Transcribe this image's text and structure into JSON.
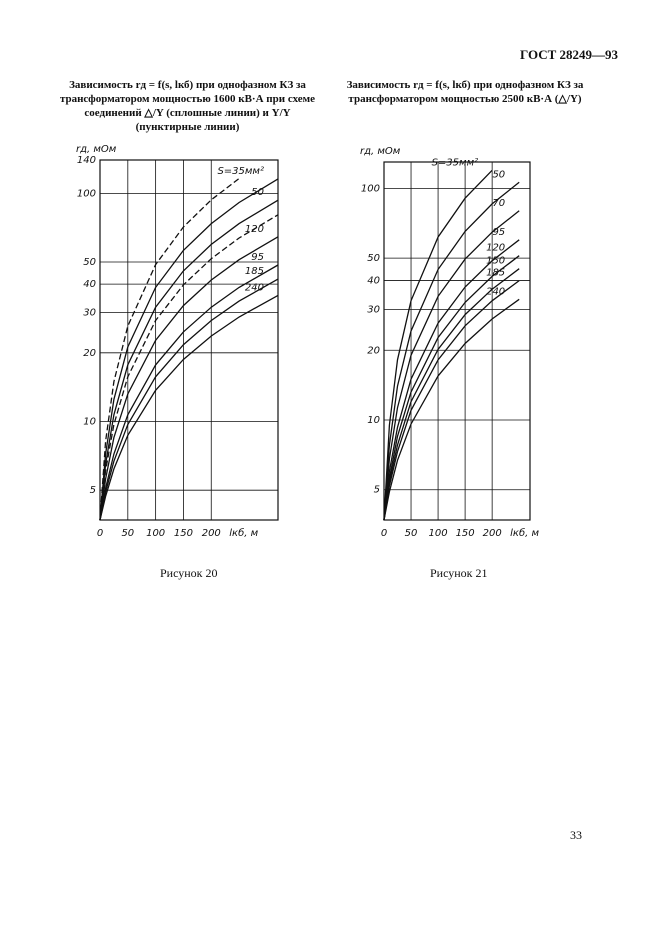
{
  "header": {
    "title": "ГОСТ 28249—93"
  },
  "chart_data": [
    {
      "type": "line",
      "log_y": true,
      "grid": true,
      "title": "Зависимость rд = f(s, lкб) при однофазном КЗ за трансформатором мощностью 1600 кВ·А при схеме соединений △/Y (сплошные линии) и Y/Y (пунктирные линии)",
      "ylabel": "rд, мОм",
      "xlabel": "lкб, м",
      "caption": "Рисунок 20",
      "x": [
        0,
        10,
        25,
        50,
        100,
        150,
        200,
        250,
        320
      ],
      "xlim": [
        0,
        320
      ],
      "xticks": [
        0,
        50,
        100,
        150,
        200
      ],
      "ylim": [
        3.7,
        140
      ],
      "yticks": [
        5,
        10,
        20,
        30,
        40,
        50,
        100,
        140
      ],
      "series": [
        {
          "name": "S=35мм²",
          "color": "#111",
          "values": [
            3.7,
            7.2,
            12.5,
            21.2,
            38.7,
            56.2,
            73.7,
            91.2,
            115.7
          ]
        },
        {
          "name": "50",
          "color": "#111",
          "values": [
            3.7,
            6.5,
            10.7,
            17.7,
            31.7,
            45.7,
            59.7,
            73.7,
            93.3
          ]
        },
        {
          "name": "120",
          "color": "#111",
          "values": [
            3.7,
            5.6,
            8.5,
            13.2,
            22.7,
            32.2,
            41.7,
            51.2,
            64.5
          ]
        },
        {
          "name": "95",
          "color": "#111",
          "values": [
            3.7,
            5.1,
            7.2,
            10.7,
            17.7,
            24.7,
            31.7,
            38.7,
            48.5
          ]
        },
        {
          "name": "185",
          "color": "#111",
          "values": [
            3.7,
            4.9,
            6.7,
            9.7,
            15.7,
            21.7,
            27.7,
            33.7,
            42.1
          ]
        },
        {
          "name": "240",
          "color": "#111",
          "values": [
            3.7,
            4.7,
            6.2,
            8.7,
            13.7,
            18.7,
            23.7,
            28.7,
            35.7
          ]
        },
        {
          "color": "#111",
          "dashed": true,
          "values": [
            3.7,
            8.2,
            14.95,
            26.2,
            48.7,
            71.2,
            93.7,
            116.2,
            null
          ]
        },
        {
          "color": "#111",
          "dashed": true,
          "values": [
            3.7,
            6.1,
            9.7,
            15.7,
            27.7,
            39.7,
            51.7,
            63.7,
            80.5
          ]
        }
      ]
    },
    {
      "type": "line",
      "log_y": true,
      "grid": true,
      "title": "Зависимость rд = f(s, lкб) при однофазном КЗ за трансформатором мощностью 2500 кВ·А (△/Y)",
      "ylabel": "rд, мОм",
      "xlabel": "lкб, м",
      "caption": "Рисунок 21",
      "x": [
        0,
        10,
        25,
        50,
        100,
        150,
        200,
        250
      ],
      "xlim": [
        0,
        270
      ],
      "xticks": [
        0,
        50,
        100,
        150,
        200
      ],
      "ylim": [
        3.7,
        130
      ],
      "yticks": [
        5,
        10,
        20,
        30,
        40,
        50,
        100
      ],
      "series": [
        {
          "name": "S=35мм²",
          "color": "#111",
          "values": [
            3.7,
            9.5,
            18.2,
            32.7,
            61.7,
            90.7,
            119.7,
            null
          ]
        },
        {
          "name": "50",
          "color": "#111",
          "values": [
            3.7,
            7.8,
            14,
            24.2,
            44.7,
            65.2,
            85.7,
            106.2
          ]
        },
        {
          "name": "70",
          "color": "#111",
          "values": [
            3.7,
            6.8,
            11.3,
            19,
            34.2,
            49.5,
            64.7,
            80
          ]
        },
        {
          "name": "95",
          "color": "#111",
          "values": [
            3.7,
            6,
            9.3,
            15,
            26.2,
            37.5,
            48.7,
            60
          ]
        },
        {
          "name": "120",
          "color": "#111",
          "values": [
            3.7,
            5.6,
            8.5,
            13.2,
            22.7,
            32.2,
            41.7,
            51.2
          ]
        },
        {
          "name": "150",
          "color": "#111",
          "values": [
            3.7,
            5.4,
            7.8,
            12,
            20.2,
            28.5,
            36.7,
            45
          ]
        },
        {
          "name": "185",
          "color": "#111",
          "values": [
            3.7,
            5.2,
            7.3,
            11,
            18.2,
            25.5,
            32.7,
            40
          ]
        },
        {
          "name": "240",
          "color": "#111",
          "values": [
            3.7,
            4.9,
            6.7,
            9.6,
            15.5,
            21.4,
            27.3,
            33.2
          ]
        }
      ]
    }
  ],
  "page_number": "33"
}
